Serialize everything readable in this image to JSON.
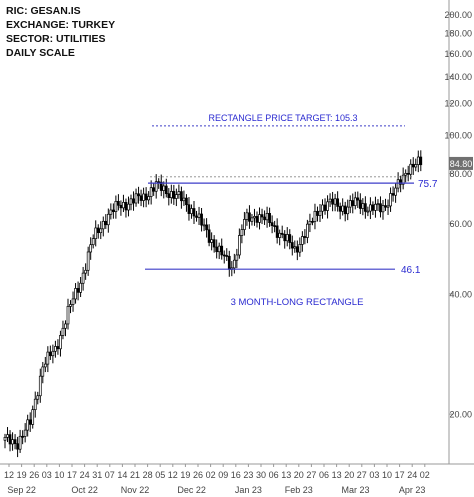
{
  "info": {
    "ric": "RIC:  GESAN.IS",
    "exchange": "EXCHANGE:  TURKEY",
    "sector": "SECTOR:  UTILITIES",
    "scale": "DAILY SCALE"
  },
  "chart_data": {
    "type": "candlestick",
    "yscale": "log",
    "ylim": [
      15,
      215
    ],
    "y_ticks": [
      20,
      40,
      60,
      80,
      100,
      120,
      140,
      160,
      180,
      200
    ],
    "y_tick_labels": [
      "20.00",
      "40.00",
      "60.00",
      "80.00",
      "100.00",
      "120.00",
      "140.00",
      "160.00",
      "180.00",
      "200.00"
    ],
    "day_ticks": [
      "12",
      "19",
      "26",
      "03",
      "10",
      "17",
      "24",
      "31",
      "07",
      "14",
      "21",
      "28",
      "05",
      "12",
      "19",
      "26",
      "02",
      "09",
      "16",
      "23",
      "30",
      "06",
      "13",
      "20",
      "27",
      "06",
      "13",
      "20",
      "27",
      "03",
      "10",
      "17",
      "24",
      "02"
    ],
    "month_labels": [
      "Sep 22",
      "Oct 22",
      "Nov 22",
      "Dec 22",
      "Jan 23",
      "Feb 23",
      "Mar 23",
      "Apr 23"
    ],
    "month_label_week_index": [
      1,
      6,
      10,
      14.5,
      19,
      23,
      27.5,
      32
    ],
    "last_price_label": "84.80",
    "last_price": 84.8,
    "lines": {
      "target": {
        "value": 105.3,
        "label": "RECTANGLE PRICE TARGET: 105.3"
      },
      "resistance": {
        "value": 75.7,
        "label": "75.7"
      },
      "support": {
        "value": 46.1,
        "label": "46.1"
      },
      "prior_high_level": 78.5
    },
    "annotation": "3 MONTH-LONG RECTANGLE",
    "weekly_closes": [
      17.2,
      17.0,
      19.0,
      26.5,
      29.0,
      36.0,
      43.0,
      55.0,
      62.0,
      66.5,
      68.0,
      70.0,
      74.5,
      72.0,
      69.0,
      64.0,
      57.0,
      51.0,
      46.5,
      61.0,
      63.0,
      60.5,
      56.0,
      51.5,
      58.0,
      66.0,
      67.5,
      65.5,
      68.0,
      65.0,
      66.0,
      72.5,
      83.0,
      84.8
    ],
    "colors": {
      "candle": "#000000",
      "horizontal_line": "#3d3dc8",
      "label_text": "#2a2ad0",
      "axis": "#999999",
      "price_box": "#707070"
    }
  }
}
